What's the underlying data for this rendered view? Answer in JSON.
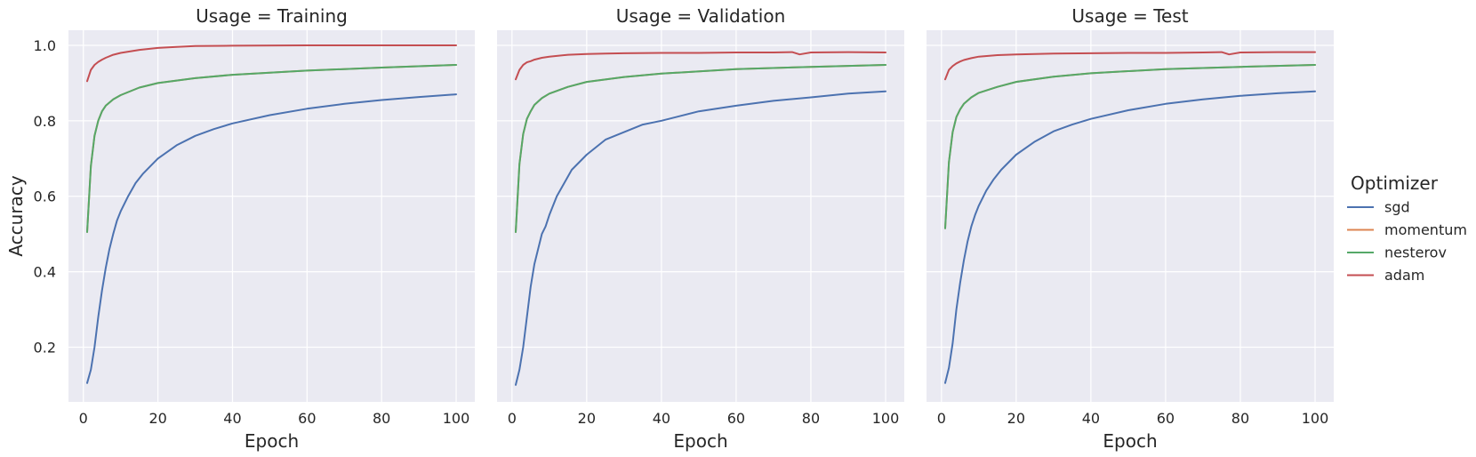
{
  "chart_data": {
    "type": "line",
    "ylabel": "Accuracy",
    "xlabel": "Epoch",
    "xlim": [
      -4,
      105
    ],
    "ylim": [
      0.055,
      1.04
    ],
    "x_ticks": [
      0,
      20,
      40,
      60,
      80,
      100
    ],
    "y_ticks": [
      0.2,
      0.4,
      0.6,
      0.8,
      1.0
    ],
    "y_tick_labels": [
      "0.2",
      "0.4",
      "0.6",
      "0.8",
      "1.0"
    ],
    "grid": true,
    "legend": {
      "title": "Optimizer",
      "placement": "right",
      "entries": [
        {
          "name": "sgd",
          "color": "#4c72b0"
        },
        {
          "name": "momentum",
          "color": "#dd8452"
        },
        {
          "name": "nesterov",
          "color": "#55a868"
        },
        {
          "name": "adam",
          "color": "#c44e52"
        }
      ]
    },
    "panels": [
      {
        "title": "Usage = Training",
        "series": [
          {
            "name": "sgd",
            "color": "#4c72b0",
            "x": [
              1,
              2,
              3,
              4,
              5,
              6,
              7,
              8,
              9,
              10,
              12,
              14,
              16,
              18,
              20,
              25,
              30,
              35,
              40,
              50,
              60,
              70,
              80,
              90,
              100
            ],
            "y": [
              0.105,
              0.14,
              0.2,
              0.28,
              0.35,
              0.41,
              0.46,
              0.5,
              0.535,
              0.56,
              0.6,
              0.635,
              0.66,
              0.68,
              0.7,
              0.735,
              0.76,
              0.778,
              0.793,
              0.815,
              0.832,
              0.845,
              0.855,
              0.863,
              0.87
            ]
          },
          {
            "name": "momentum",
            "color": "#dd8452",
            "x": [
              1,
              2,
              3,
              4,
              5,
              6,
              8,
              10,
              15,
              20,
              30,
              40,
              60,
              80,
              100
            ],
            "y": [
              0.505,
              0.68,
              0.76,
              0.8,
              0.825,
              0.84,
              0.857,
              0.868,
              0.888,
              0.9,
              0.913,
              0.922,
              0.933,
              0.941,
              0.948
            ]
          },
          {
            "name": "nesterov",
            "color": "#55a868",
            "x": [
              1,
              2,
              3,
              4,
              5,
              6,
              8,
              10,
              15,
              20,
              30,
              40,
              60,
              80,
              100
            ],
            "y": [
              0.505,
              0.68,
              0.76,
              0.8,
              0.825,
              0.84,
              0.857,
              0.868,
              0.888,
              0.9,
              0.913,
              0.922,
              0.933,
              0.941,
              0.948
            ]
          },
          {
            "name": "adam",
            "color": "#c44e52",
            "x": [
              1,
              2,
              3,
              4,
              5,
              6,
              8,
              10,
              15,
              20,
              25,
              30,
              40,
              60,
              80,
              100
            ],
            "y": [
              0.905,
              0.935,
              0.948,
              0.956,
              0.962,
              0.967,
              0.975,
              0.98,
              0.988,
              0.993,
              0.996,
              0.998,
              0.999,
              1.0,
              1.0,
              1.0
            ]
          }
        ]
      },
      {
        "title": "Usage = Validation",
        "series": [
          {
            "name": "sgd",
            "color": "#4c72b0",
            "x": [
              1,
              2,
              3,
              4,
              5,
              6,
              7,
              8,
              9,
              10,
              12,
              14,
              16,
              18,
              20,
              25,
              30,
              35,
              40,
              50,
              60,
              70,
              80,
              90,
              100
            ],
            "y": [
              0.1,
              0.14,
              0.2,
              0.28,
              0.36,
              0.42,
              0.46,
              0.5,
              0.52,
              0.55,
              0.6,
              0.635,
              0.67,
              0.69,
              0.71,
              0.75,
              0.77,
              0.79,
              0.8,
              0.825,
              0.84,
              0.853,
              0.862,
              0.872,
              0.878
            ]
          },
          {
            "name": "momentum",
            "color": "#dd8452",
            "x": [
              1,
              2,
              3,
              4,
              5,
              6,
              8,
              10,
              15,
              20,
              30,
              40,
              60,
              80,
              100
            ],
            "y": [
              0.505,
              0.685,
              0.765,
              0.805,
              0.825,
              0.842,
              0.86,
              0.872,
              0.89,
              0.903,
              0.916,
              0.925,
              0.937,
              0.943,
              0.948
            ]
          },
          {
            "name": "nesterov",
            "color": "#55a868",
            "x": [
              1,
              2,
              3,
              4,
              5,
              6,
              8,
              10,
              15,
              20,
              30,
              40,
              60,
              80,
              100
            ],
            "y": [
              0.505,
              0.685,
              0.765,
              0.805,
              0.825,
              0.842,
              0.86,
              0.872,
              0.89,
              0.903,
              0.916,
              0.925,
              0.937,
              0.943,
              0.948
            ]
          },
          {
            "name": "adam",
            "color": "#c44e52",
            "x": [
              1,
              2,
              3,
              4,
              5,
              6,
              8,
              10,
              15,
              20,
              25,
              30,
              40,
              50,
              60,
              70,
              75,
              77,
              80,
              90,
              100
            ],
            "y": [
              0.91,
              0.935,
              0.948,
              0.955,
              0.958,
              0.962,
              0.967,
              0.97,
              0.975,
              0.977,
              0.978,
              0.979,
              0.98,
              0.98,
              0.981,
              0.981,
              0.982,
              0.976,
              0.981,
              0.982,
              0.981
            ]
          }
        ]
      },
      {
        "title": "Usage = Test",
        "series": [
          {
            "name": "sgd",
            "color": "#4c72b0",
            "x": [
              1,
              2,
              3,
              4,
              5,
              6,
              7,
              8,
              9,
              10,
              12,
              14,
              16,
              18,
              20,
              25,
              30,
              35,
              40,
              50,
              60,
              70,
              80,
              90,
              100
            ],
            "y": [
              0.105,
              0.145,
              0.21,
              0.3,
              0.37,
              0.43,
              0.48,
              0.52,
              0.55,
              0.575,
              0.615,
              0.645,
              0.67,
              0.69,
              0.71,
              0.745,
              0.772,
              0.79,
              0.805,
              0.828,
              0.845,
              0.857,
              0.866,
              0.873,
              0.878
            ]
          },
          {
            "name": "momentum",
            "color": "#dd8452",
            "x": [
              1,
              2,
              3,
              4,
              5,
              6,
              8,
              10,
              15,
              20,
              30,
              40,
              60,
              80,
              100
            ],
            "y": [
              0.515,
              0.69,
              0.77,
              0.81,
              0.83,
              0.845,
              0.862,
              0.874,
              0.89,
              0.903,
              0.917,
              0.926,
              0.937,
              0.943,
              0.948
            ]
          },
          {
            "name": "nesterov",
            "color": "#55a868",
            "x": [
              1,
              2,
              3,
              4,
              5,
              6,
              8,
              10,
              15,
              20,
              30,
              40,
              60,
              80,
              100
            ],
            "y": [
              0.515,
              0.69,
              0.77,
              0.81,
              0.83,
              0.845,
              0.862,
              0.874,
              0.89,
              0.903,
              0.917,
              0.926,
              0.937,
              0.943,
              0.948
            ]
          },
          {
            "name": "adam",
            "color": "#c44e52",
            "x": [
              1,
              2,
              3,
              4,
              5,
              6,
              8,
              10,
              15,
              20,
              25,
              30,
              40,
              50,
              60,
              70,
              75,
              77,
              80,
              90,
              100
            ],
            "y": [
              0.91,
              0.935,
              0.945,
              0.952,
              0.957,
              0.961,
              0.966,
              0.97,
              0.974,
              0.976,
              0.977,
              0.978,
              0.979,
              0.98,
              0.98,
              0.981,
              0.982,
              0.976,
              0.981,
              0.982,
              0.982
            ]
          }
        ]
      }
    ]
  }
}
